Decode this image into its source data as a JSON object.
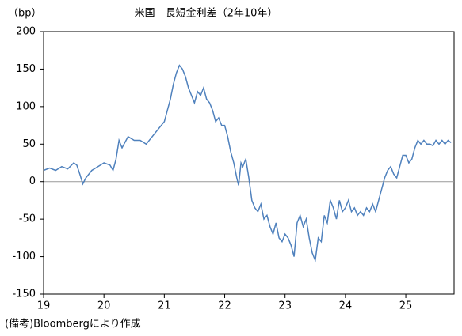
{
  "chart_data": {
    "type": "line",
    "title": "米国　長短金利差（2年10年）",
    "y_label": "（bp）",
    "note": "(備考)Bloombergにより作成",
    "color": "#4f81bd",
    "zero_line": true,
    "xlim": [
      19,
      25.8
    ],
    "xticks": [
      19,
      20,
      21,
      22,
      23,
      24,
      25
    ],
    "ylim": [
      -150,
      200
    ],
    "yticks": [
      -150,
      -100,
      -50,
      0,
      50,
      100,
      150,
      200
    ],
    "x": [
      19.0,
      19.1,
      19.2,
      19.3,
      19.4,
      19.5,
      19.55,
      19.6,
      19.65,
      19.7,
      19.8,
      19.9,
      20.0,
      20.1,
      20.15,
      20.2,
      20.25,
      20.3,
      20.4,
      20.5,
      20.6,
      20.7,
      20.8,
      20.9,
      21.0,
      21.05,
      21.1,
      21.15,
      21.2,
      21.25,
      21.3,
      21.35,
      21.4,
      21.45,
      21.5,
      21.55,
      21.6,
      21.65,
      21.7,
      21.75,
      21.8,
      21.85,
      21.9,
      21.95,
      22.0,
      22.05,
      22.1,
      22.15,
      22.2,
      22.23,
      22.27,
      22.3,
      22.35,
      22.4,
      22.45,
      22.5,
      22.55,
      22.6,
      22.65,
      22.7,
      22.75,
      22.8,
      22.85,
      22.9,
      22.95,
      23.0,
      23.05,
      23.1,
      23.15,
      23.2,
      23.25,
      23.3,
      23.35,
      23.4,
      23.45,
      23.5,
      23.55,
      23.6,
      23.65,
      23.7,
      23.75,
      23.8,
      23.85,
      23.9,
      23.95,
      24.0,
      24.05,
      24.1,
      24.15,
      24.2,
      24.25,
      24.3,
      24.35,
      24.4,
      24.45,
      24.5,
      24.55,
      24.6,
      24.65,
      24.7,
      24.75,
      24.8,
      24.85,
      24.9,
      24.95,
      25.0,
      25.05,
      25.1,
      25.15,
      25.2,
      25.25,
      25.3,
      25.35,
      25.4,
      25.45,
      25.5,
      25.55,
      25.6,
      25.65,
      25.7,
      25.75
    ],
    "values": [
      15,
      18,
      15,
      20,
      17,
      25,
      22,
      10,
      -3,
      5,
      15,
      20,
      25,
      22,
      15,
      30,
      55,
      45,
      60,
      55,
      55,
      50,
      60,
      70,
      80,
      95,
      110,
      130,
      145,
      155,
      150,
      140,
      125,
      115,
      105,
      120,
      115,
      125,
      110,
      105,
      95,
      80,
      85,
      75,
      75,
      60,
      40,
      25,
      5,
      -5,
      25,
      20,
      30,
      5,
      -25,
      -35,
      -40,
      -30,
      -50,
      -45,
      -60,
      -70,
      -55,
      -75,
      -80,
      -70,
      -75,
      -85,
      -100,
      -55,
      -45,
      -60,
      -50,
      -75,
      -95,
      -105,
      -75,
      -80,
      -45,
      -55,
      -25,
      -35,
      -50,
      -25,
      -40,
      -35,
      -25,
      -40,
      -35,
      -45,
      -40,
      -45,
      -35,
      -40,
      -30,
      -40,
      -25,
      -10,
      5,
      15,
      20,
      10,
      5,
      20,
      35,
      35,
      25,
      30,
      45,
      55,
      50,
      55,
      50,
      50,
      48,
      55,
      50,
      55,
      50,
      55,
      52
    ]
  }
}
